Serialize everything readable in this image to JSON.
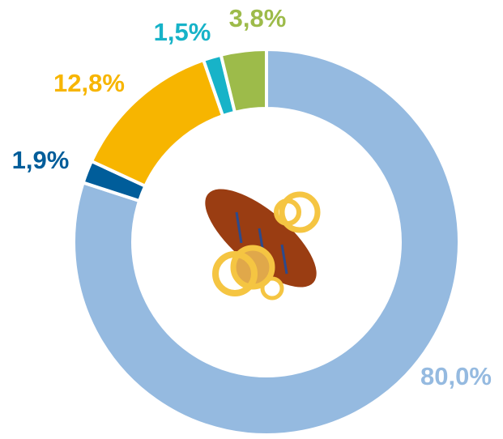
{
  "chart_data": {
    "type": "donut",
    "values": [
      80.0,
      1.9,
      12.8,
      1.5,
      3.8
    ],
    "value_labels": [
      "80,0%",
      "1,9%",
      "12,8%",
      "1,5%",
      "3,8%"
    ],
    "colors": [
      "#95bae0",
      "#005d9a",
      "#f7b500",
      "#17b3c8",
      "#9dbb4a"
    ]
  }
}
